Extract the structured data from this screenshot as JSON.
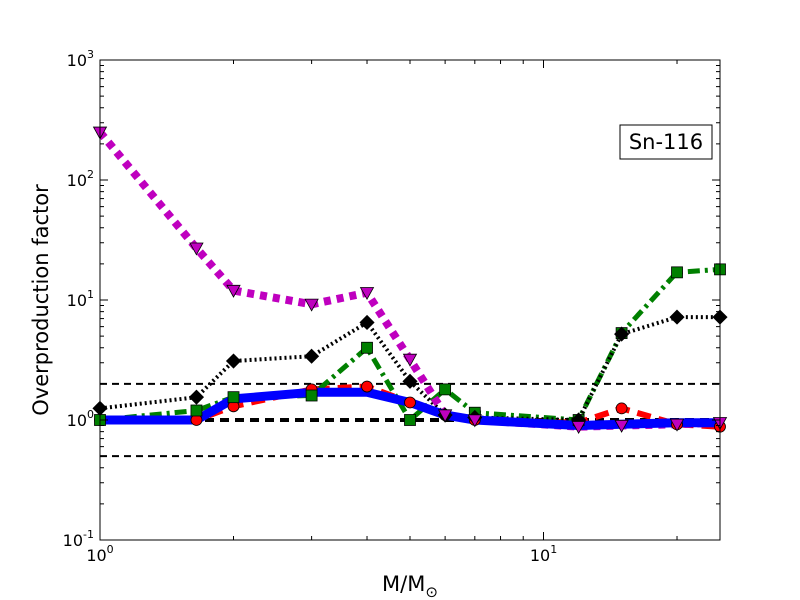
{
  "chart_data": {
    "type": "line",
    "title": "",
    "xlabel": "M/M",
    "xlabel_subscript": "⊙",
    "ylabel": "Overproduction factor",
    "xscale": "log",
    "yscale": "log",
    "xlim": [
      1,
      25
    ],
    "ylim": [
      0.1,
      1000
    ],
    "x_ticks": [
      {
        "base": "10",
        "exp": "0",
        "value": 1
      },
      {
        "base": "10",
        "exp": "1",
        "value": 10
      }
    ],
    "y_ticks": [
      {
        "base": "10",
        "exp": "-1",
        "value": 0.1
      },
      {
        "base": "10",
        "exp": "0",
        "value": 1
      },
      {
        "base": "10",
        "exp": "1",
        "value": 10
      },
      {
        "base": "10",
        "exp": "2",
        "value": 100
      },
      {
        "base": "10",
        "exp": "3",
        "value": 1000
      }
    ],
    "grid": false,
    "annotation": "Sn-116",
    "annotation_position": "top-right",
    "reference_lines": [
      {
        "y": 2.0,
        "style": "dashed",
        "color": "#000000"
      },
      {
        "y": 1.0,
        "style": "dashed-thick",
        "color": "#000000"
      },
      {
        "y": 0.5,
        "style": "dashed",
        "color": "#000000"
      }
    ],
    "series": [
      {
        "color": "#ff0000",
        "style": "dashed",
        "marker": "circle",
        "x": [
          1,
          1.65,
          2,
          3,
          4,
          5,
          6,
          7,
          12,
          15,
          20,
          25
        ],
        "y": [
          1.0,
          1.0,
          1.3,
          1.8,
          1.9,
          1.4,
          1.1,
          1.0,
          0.95,
          1.25,
          0.92,
          0.88
        ]
      },
      {
        "color": "#008000",
        "style": "dashdot",
        "marker": "square",
        "x": [
          1,
          1.65,
          2,
          3,
          4,
          5,
          6,
          7,
          12,
          15,
          20,
          25
        ],
        "y": [
          1.0,
          1.2,
          1.55,
          1.6,
          4.0,
          1.0,
          1.8,
          1.15,
          1.0,
          5.3,
          17,
          18
        ]
      },
      {
        "color": "#000000",
        "style": "dotted",
        "marker": "diamond",
        "x": [
          1,
          1.65,
          2,
          3,
          4,
          5,
          6,
          7,
          12,
          15,
          20,
          25
        ],
        "y": [
          1.25,
          1.55,
          3.1,
          3.4,
          6.5,
          2.1,
          1.1,
          1.05,
          1.0,
          5.2,
          7.2,
          7.2
        ]
      },
      {
        "color": "#bf00bf",
        "style": "dotted-thick",
        "marker": "triangle-down",
        "x": [
          1,
          1.65,
          2,
          3,
          4,
          5,
          6,
          7,
          12,
          15,
          20,
          25
        ],
        "y": [
          250,
          27,
          12,
          9.2,
          11.5,
          3.2,
          1.1,
          1.0,
          0.88,
          0.9,
          0.92,
          0.95
        ]
      },
      {
        "color": "#0000ff",
        "style": "solid",
        "marker": "none",
        "x": [
          1,
          1.65,
          2,
          3,
          4,
          5,
          6,
          7,
          12,
          15,
          20,
          25
        ],
        "y": [
          1.0,
          1.0,
          1.5,
          1.7,
          1.7,
          1.4,
          1.1,
          1.0,
          0.9,
          0.92,
          0.95,
          0.95
        ]
      }
    ]
  }
}
